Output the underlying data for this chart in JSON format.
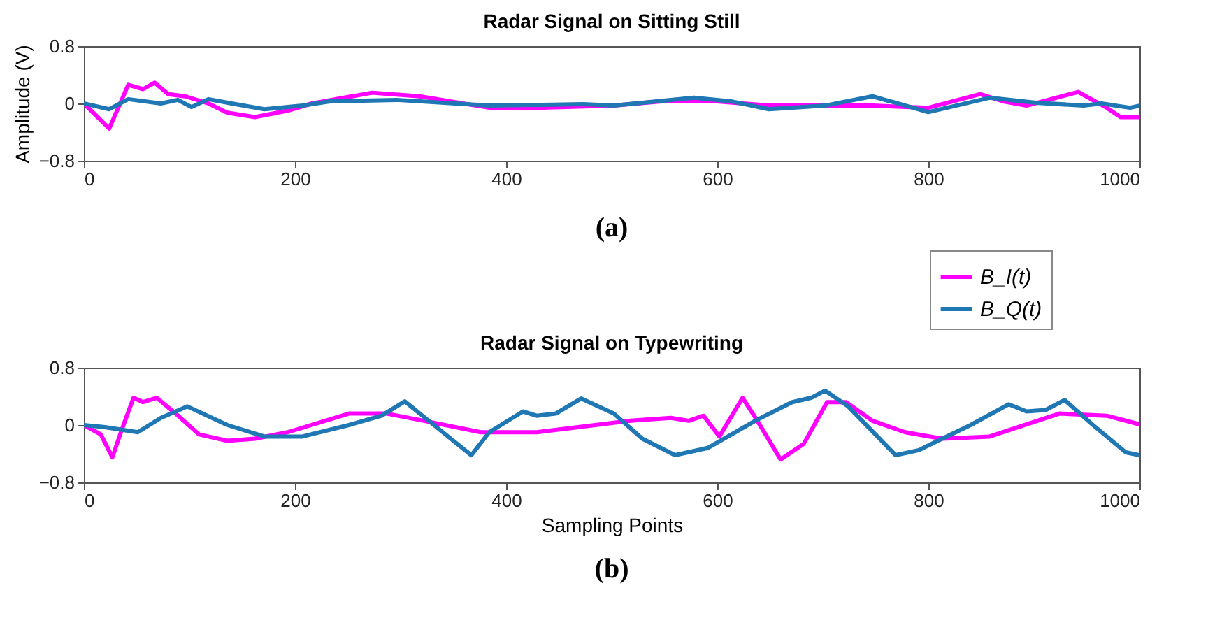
{
  "chart_data": [
    {
      "type": "line",
      "title": "Radar Signal on Sitting Still",
      "ylabel": "Amplitude (V)",
      "annotations": [
        "(a)"
      ],
      "xlim": [
        0,
        1000
      ],
      "xticks": [
        0,
        200,
        400,
        600,
        800,
        1000
      ],
      "ylim": [
        -0.8,
        0.8
      ],
      "yticks": [
        -0.8,
        0,
        0.8
      ],
      "grid": false,
      "legend": "bottom right",
      "line_style": "solid",
      "series": [
        {
          "name": "B_I(t)",
          "color": "#ff00ff",
          "x": [
            0,
            24,
            42,
            56,
            67,
            80,
            96,
            118,
            136,
            162,
            193,
            216,
            273,
            318,
            384,
            429,
            502,
            547,
            600,
            649,
            702,
            747,
            800,
            849,
            871,
            893,
            942,
            969,
            982,
            1000
          ],
          "values": [
            0,
            -0.35,
            0.26,
            0.2,
            0.29,
            0.13,
            0.1,
            0,
            -0.13,
            -0.19,
            -0.1,
            0,
            0.15,
            0.1,
            -0.06,
            -0.06,
            -0.03,
            0.03,
            0.03,
            -0.03,
            -0.03,
            -0.03,
            -0.06,
            0.13,
            0.03,
            -0.03,
            0.16,
            -0.06,
            -0.19,
            -0.19
          ]
        },
        {
          "name": "B_Q(t)",
          "color": "#1f77b4",
          "x": [
            0,
            24,
            42,
            73,
            89,
            102,
            118,
            140,
            171,
            207,
            233,
            296,
            384,
            473,
            502,
            578,
            613,
            649,
            702,
            747,
            800,
            858,
            902,
            947,
            964,
            991,
            1000
          ],
          "values": [
            0,
            -0.08,
            0.06,
            0,
            0.05,
            -0.05,
            0.06,
            0,
            -0.08,
            -0.03,
            0.03,
            0.05,
            -0.03,
            -0.01,
            -0.03,
            0.08,
            0.03,
            -0.08,
            -0.03,
            0.1,
            -0.12,
            0.08,
            0.01,
            -0.03,
            0,
            -0.06,
            -0.03
          ]
        }
      ]
    },
    {
      "type": "line",
      "title": "Radar Signal on Typewriting",
      "xlabel": "Sampling Points",
      "annotations": [
        "(b)"
      ],
      "xlim": [
        0,
        1000
      ],
      "xticks": [
        0,
        200,
        400,
        600,
        800,
        1000
      ],
      "ylim": [
        -0.8,
        0.8
      ],
      "yticks": [
        -0.8,
        0,
        0.8
      ],
      "grid": false,
      "line_style": "solid",
      "series": [
        {
          "color": "#ff00ff",
          "x": [
            0,
            16,
            27,
            36,
            47,
            56,
            69,
            87,
            109,
            136,
            162,
            193,
            251,
            287,
            322,
            376,
            429,
            518,
            556,
            573,
            587,
            602,
            624,
            638,
            660,
            682,
            704,
            722,
            747,
            778,
            813,
            858,
            924,
            969,
            1000
          ],
          "values": [
            0,
            -0.13,
            -0.45,
            -0.06,
            0.38,
            0.32,
            0.38,
            0.16,
            -0.13,
            -0.22,
            -0.19,
            -0.1,
            0.16,
            0.16,
            0.06,
            -0.1,
            -0.1,
            0.06,
            0.1,
            0.06,
            0.13,
            -0.16,
            0.38,
            0.06,
            -0.48,
            -0.26,
            0.32,
            0.32,
            0.06,
            -0.1,
            -0.19,
            -0.16,
            0.16,
            0.13,
            0.01
          ]
        },
        {
          "color": "#1f77b4",
          "x": [
            0,
            20,
            51,
            73,
            98,
            136,
            171,
            207,
            251,
            282,
            304,
            340,
            367,
            384,
            416,
            429,
            447,
            471,
            502,
            529,
            560,
            591,
            636,
            671,
            689,
            702,
            724,
            769,
            791,
            813,
            840,
            876,
            893,
            911,
            929,
            956,
            987,
            1000
          ],
          "values": [
            0,
            -0.03,
            -0.1,
            0.1,
            0.26,
            0,
            -0.16,
            -0.16,
            0,
            0.13,
            0.33,
            -0.1,
            -0.42,
            -0.1,
            0.19,
            0.13,
            0.16,
            0.37,
            0.16,
            -0.19,
            -0.42,
            -0.32,
            0.06,
            0.32,
            0.38,
            0.48,
            0.26,
            -0.42,
            -0.35,
            -0.19,
            0,
            0.29,
            0.19,
            0.21,
            0.35,
            0,
            -0.38,
            -0.42
          ]
        }
      ]
    }
  ]
}
